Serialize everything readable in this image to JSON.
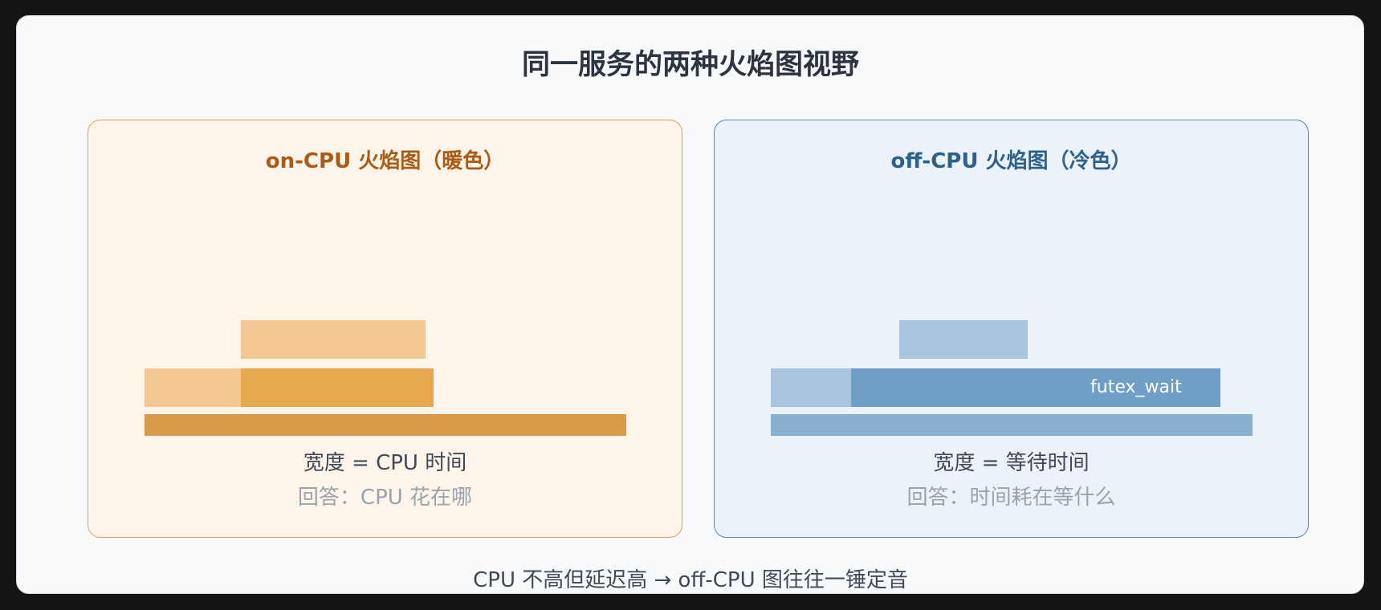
{
  "title": "同一服务的两种火焰图视野",
  "panels": {
    "on_cpu": {
      "title": "on-CPU 火焰图（暖色）",
      "caption": "宽度 = CPU 时间",
      "subcaption": "回答：CPU 花在哪",
      "colors": {
        "base": "#d99a4a",
        "mid": "#e8a84e",
        "light": "#f2c792"
      }
    },
    "off_cpu": {
      "title": "off-CPU 火焰图（冷色）",
      "caption": "宽度 = 等待时间",
      "subcaption": "回答：时间耗在等什么",
      "frame_label": "futex_wait",
      "colors": {
        "base": "#8ab0d1",
        "mid": "#6f9fc7",
        "light": "#a9c5dd"
      }
    }
  },
  "footer": "CPU 不高但延迟高 → off-CPU 图往往一锤定音"
}
